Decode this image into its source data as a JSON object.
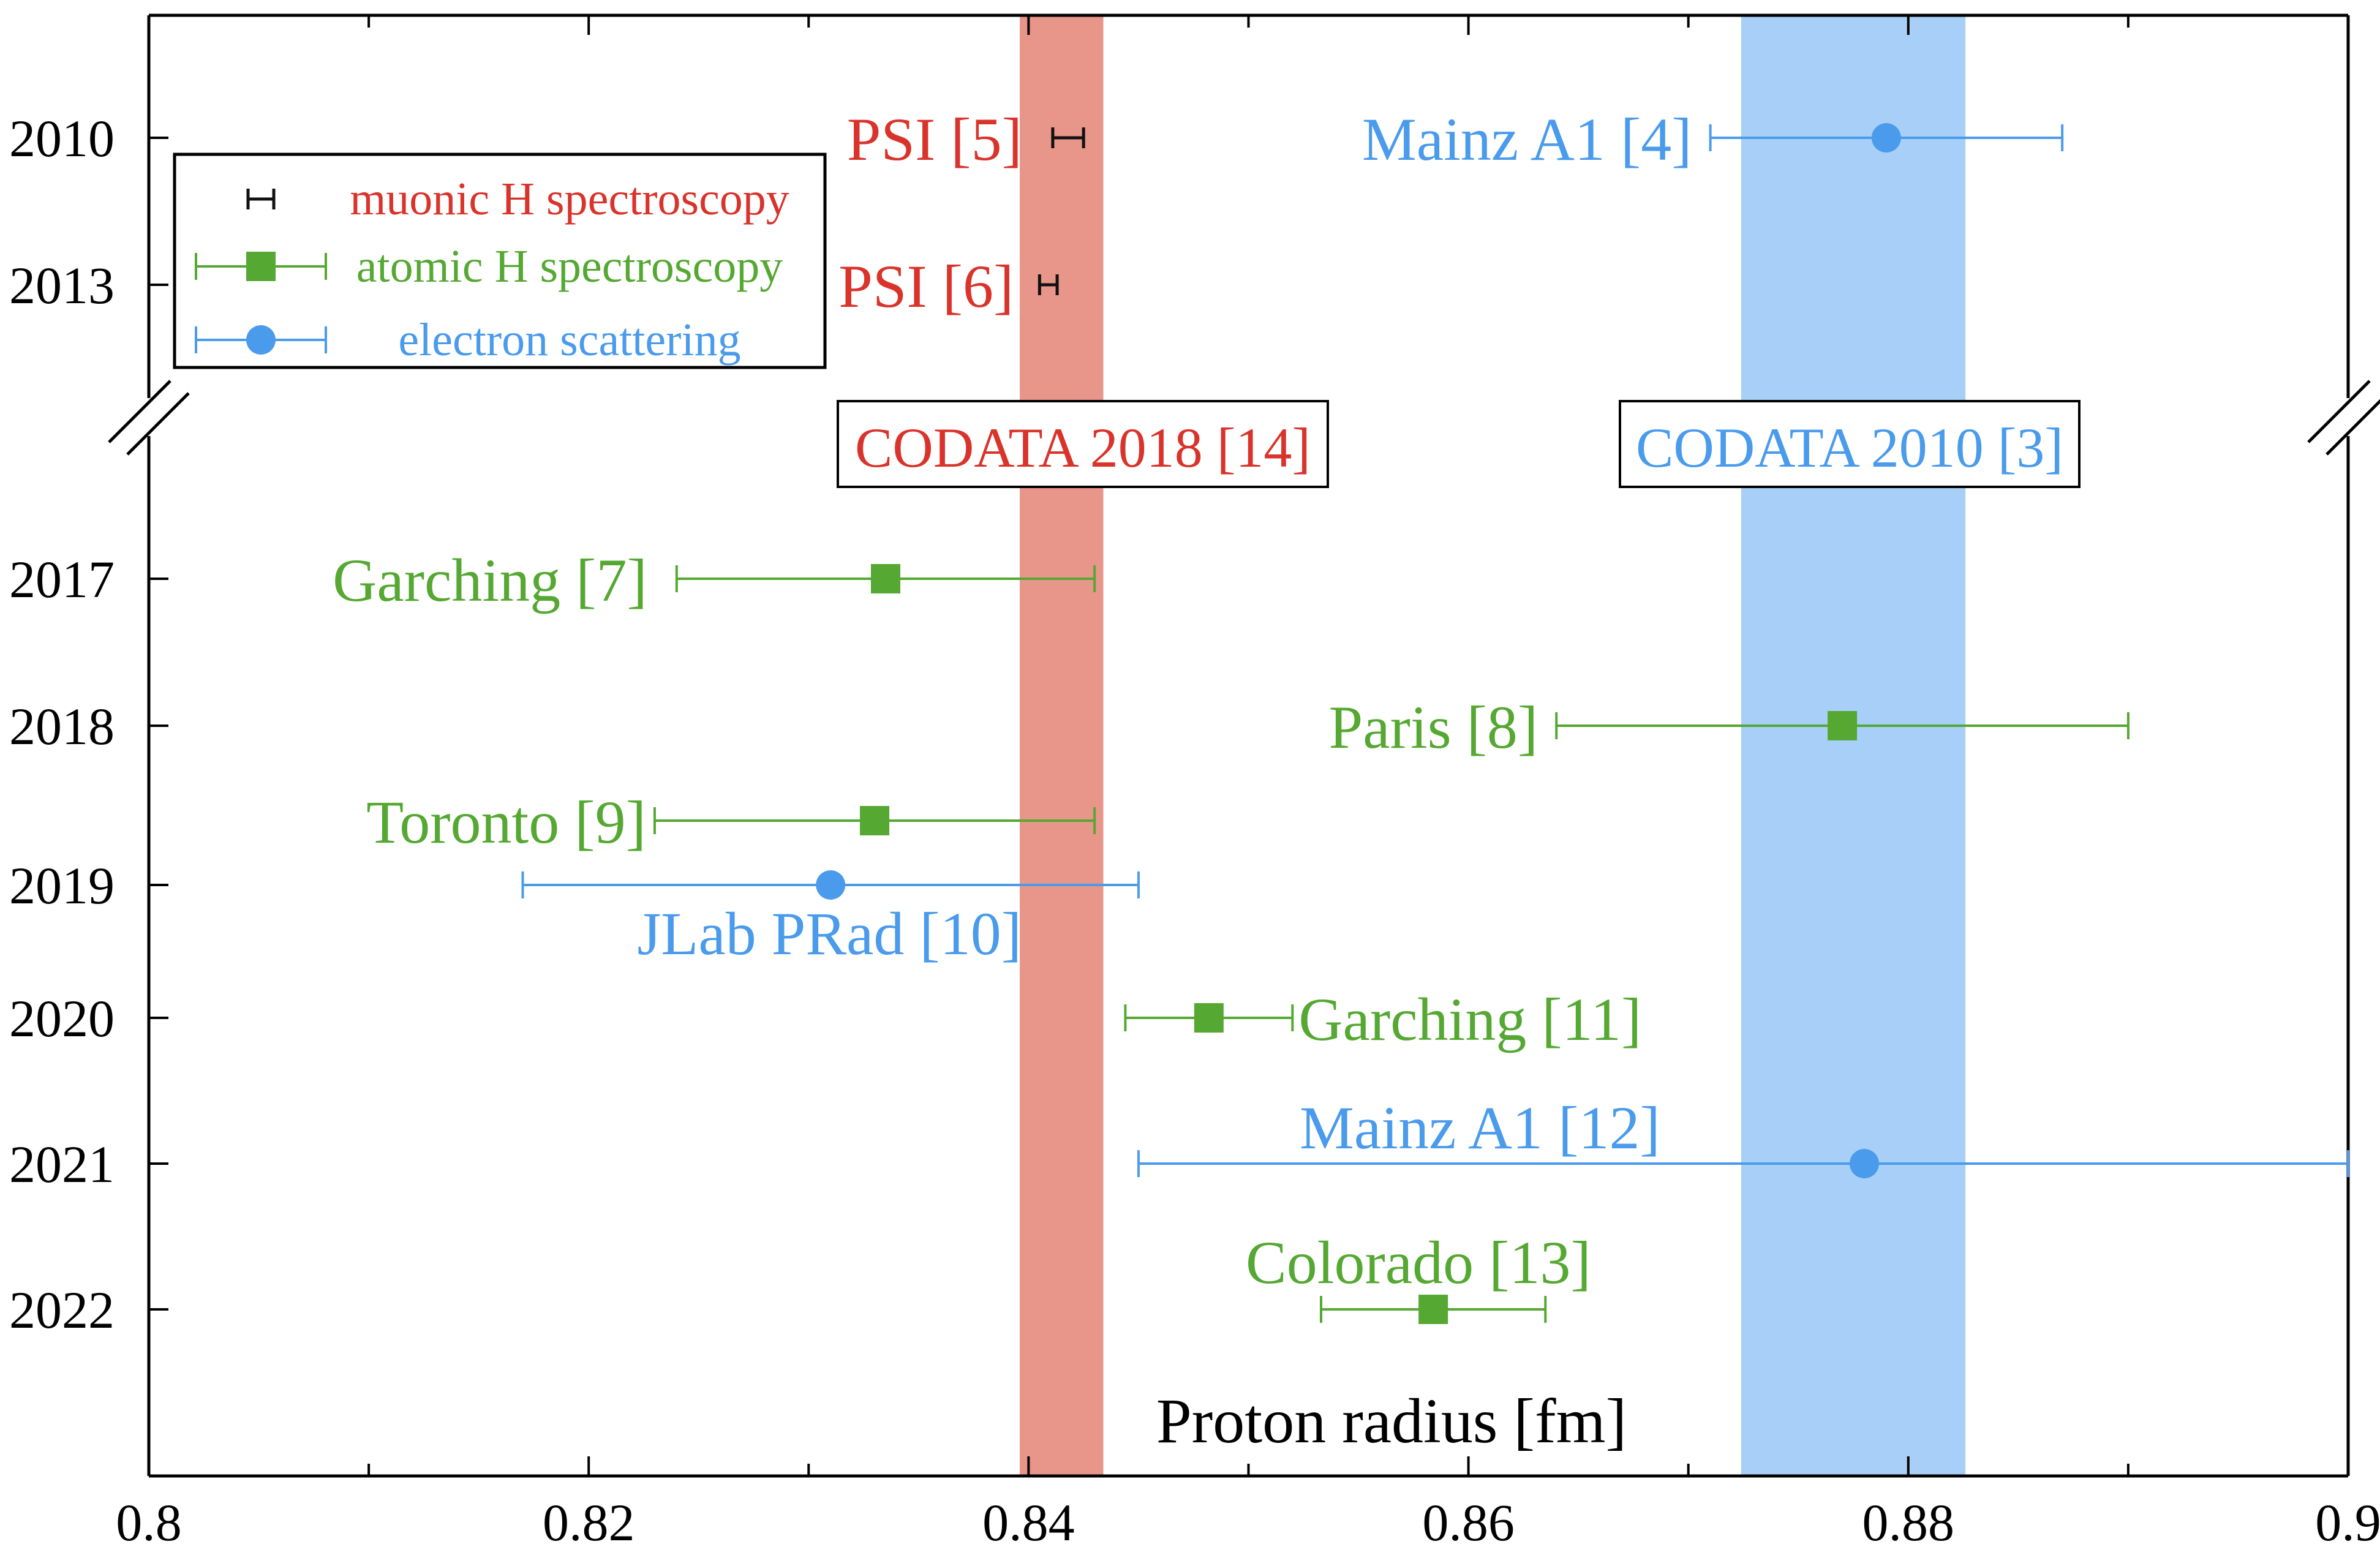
{
  "chart_data": {
    "type": "scatter",
    "xlabel": "Proton radius [fm]",
    "ylabel": "",
    "xlim": [
      0.8,
      0.9
    ],
    "x_ticks": [
      "0.8",
      "0.82",
      "0.84",
      "0.86",
      "0.88",
      "0.9"
    ],
    "y_ticks": [
      "2010",
      "2013",
      "2017",
      "2018",
      "2019",
      "2020",
      "2021",
      "2022"
    ],
    "grid": false,
    "legend_position": "top-left",
    "colors": {
      "muonic": "#111111",
      "atomic": "#55a832",
      "electron": "#4a9bec",
      "codata2018": "#d9332b",
      "codata2010": "#4a9bec"
    },
    "legend": [
      {
        "label": "muonic H spectroscopy",
        "method": "muonic"
      },
      {
        "label": "atomic H spectroscopy",
        "method": "atomic"
      },
      {
        "label": "electron scattering",
        "method": "electron"
      }
    ],
    "bands": [
      {
        "label": "CODATA 2018 [14]",
        "x_min": 0.8396,
        "x_max": 0.8434,
        "color": "#e8968a",
        "text_color": "#d9332b"
      },
      {
        "label": "CODATA 2010 [3]",
        "x_min": 0.8724,
        "x_max": 0.8826,
        "color": "#a8cff7",
        "text_color": "#4a9bec"
      }
    ],
    "series": [
      {
        "name": "muonic H spectroscopy",
        "method": "muonic",
        "points": [
          {
            "label": "PSI [5]",
            "year": "2010",
            "value": 0.8418,
            "err_low": 0.0007,
            "err_high": 0.0007
          },
          {
            "label": "PSI [6]",
            "year": "2013",
            "value": 0.8409,
            "err_low": 0.0004,
            "err_high": 0.0004
          }
        ]
      },
      {
        "name": "atomic H spectroscopy",
        "method": "atomic",
        "points": [
          {
            "label": "Garching [7]",
            "year": "2017",
            "value": 0.8335,
            "err_low": 0.0095,
            "err_high": 0.0095
          },
          {
            "label": "Paris [8]",
            "year": "2018",
            "value": 0.877,
            "err_low": 0.013,
            "err_high": 0.013
          },
          {
            "label": "Toronto [9]",
            "year": "2019a",
            "value": 0.833,
            "err_low": 0.01,
            "err_high": 0.01
          },
          {
            "label": "Garching [11]",
            "year": "2020",
            "value": 0.8482,
            "err_low": 0.0038,
            "err_high": 0.0038
          },
          {
            "label": "Colorado [13]",
            "year": "2022",
            "value": 0.8584,
            "err_low": 0.0051,
            "err_high": 0.0051
          }
        ]
      },
      {
        "name": "electron scattering",
        "method": "electron",
        "points": [
          {
            "label": "Mainz A1 [4]",
            "year": "2010",
            "value": 0.879,
            "err_low": 0.008,
            "err_high": 0.008
          },
          {
            "label": "JLab PRad [10]",
            "year": "2019",
            "value": 0.831,
            "err_low": 0.014,
            "err_high": 0.014
          },
          {
            "label": "Mainz A1 [12]",
            "year": "2021",
            "value": 0.878,
            "err_low": 0.033,
            "err_high": 0.033
          }
        ]
      }
    ]
  }
}
